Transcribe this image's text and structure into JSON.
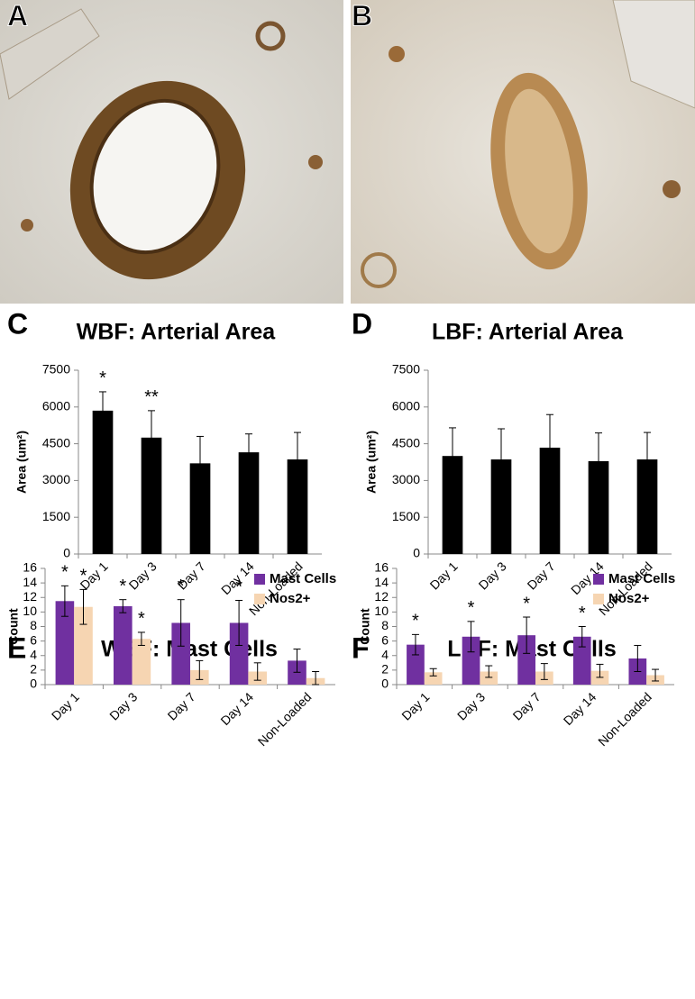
{
  "image_panels": [
    {
      "label": "A"
    },
    {
      "label": "B"
    }
  ],
  "chart_data": [
    {
      "type": "bar",
      "panel": "C",
      "title": "WBF: Arterial Area",
      "ylabel": "Area (um²)",
      "categories": [
        "Day 1",
        "Day 3",
        "Day 7",
        "Day 14",
        "Non-Loaded"
      ],
      "series": [
        {
          "color": "#000000",
          "values": [
            5850,
            4750,
            3700,
            4150,
            3860
          ],
          "errors": [
            770,
            1100,
            1100,
            750,
            1100
          ],
          "annotations": [
            "*",
            "**",
            null,
            null,
            null
          ]
        }
      ],
      "ylim": [
        0,
        7500
      ],
      "yticks": [
        0,
        1500,
        3000,
        4500,
        6000,
        7500
      ]
    },
    {
      "type": "bar",
      "panel": "D",
      "title": "LBF: Arterial Area",
      "ylabel": "Area (um²)",
      "categories": [
        "Day 1",
        "Day 3",
        "Day 7",
        "Day 14",
        "Non-Loaded"
      ],
      "series": [
        {
          "color": "#000000",
          "values": [
            4000,
            3860,
            4340,
            3790,
            3860
          ],
          "errors": [
            1150,
            1250,
            1350,
            1150,
            1100
          ]
        }
      ],
      "ylim": [
        0,
        7500
      ],
      "yticks": [
        0,
        1500,
        3000,
        4500,
        6000,
        7500
      ]
    },
    {
      "type": "bar",
      "panel": "E",
      "title": "WBF: Mast Cells",
      "ylabel": "Count",
      "categories": [
        "Day 1",
        "Day 3",
        "Day 7",
        "Day 14",
        "Non-Loaded"
      ],
      "series": [
        {
          "name": "Mast Cells",
          "color": "#7030a0",
          "values": [
            11.5,
            10.8,
            8.5,
            8.5,
            3.3
          ],
          "errors": [
            2.1,
            0.9,
            3.2,
            3.1,
            1.6
          ],
          "annotations": [
            "*",
            "*",
            "*",
            "*",
            null
          ]
        },
        {
          "name": "Nos2+",
          "color": "#f6d5b2",
          "values": [
            10.7,
            6.3,
            2.0,
            1.8,
            0.9
          ],
          "errors": [
            2.4,
            0.9,
            1.3,
            1.2,
            0.9
          ],
          "annotations": [
            "*",
            "*",
            null,
            null,
            null
          ]
        }
      ],
      "ylim": [
        0,
        16
      ],
      "yticks": [
        0,
        2,
        4,
        6,
        8,
        10,
        12,
        14,
        16
      ],
      "legend": "upper right"
    },
    {
      "type": "bar",
      "panel": "F",
      "title": "LBF: Mast Cells",
      "ylabel": "Count",
      "categories": [
        "Day 1",
        "Day 3",
        "Day 7",
        "Day 14",
        "Non-Loaded"
      ],
      "series": [
        {
          "name": "Mast Cells",
          "color": "#7030a0",
          "values": [
            5.5,
            6.6,
            6.8,
            6.6,
            3.6
          ],
          "errors": [
            1.4,
            2.1,
            2.5,
            1.4,
            1.8
          ],
          "annotations": [
            "*",
            "*",
            "*",
            "*",
            null
          ]
        },
        {
          "name": "Nos2+",
          "color": "#f6d5b2",
          "values": [
            1.7,
            1.8,
            1.8,
            1.9,
            1.3
          ],
          "errors": [
            0.5,
            0.8,
            1.1,
            0.9,
            0.8
          ]
        }
      ],
      "ylim": [
        0,
        16
      ],
      "yticks": [
        0,
        2,
        4,
        6,
        8,
        10,
        12,
        14,
        16
      ],
      "legend": "upper right"
    }
  ]
}
